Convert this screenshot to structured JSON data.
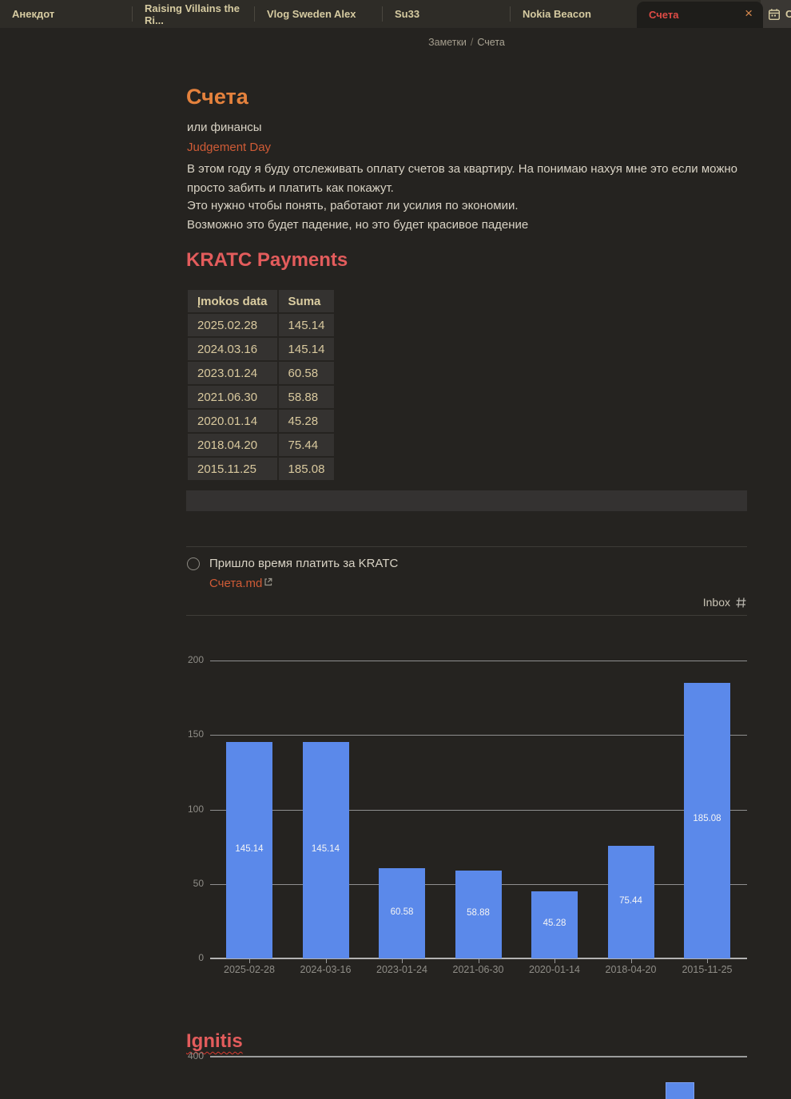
{
  "tabs": {
    "items": [
      {
        "label": "Анекдот",
        "active": false
      },
      {
        "label": "Raising Villains the Ri...",
        "active": false
      },
      {
        "label": "Vlog Sweden Alex",
        "active": false
      },
      {
        "label": "Su33",
        "active": false
      },
      {
        "label": "Nokia Beacon",
        "active": false
      },
      {
        "label": "Счета",
        "active": true
      }
    ],
    "close_glyph": "×",
    "partial_tab_label": "С"
  },
  "breadcrumb": {
    "parent": "Заметки",
    "separator": "/",
    "current": "Счета"
  },
  "note": {
    "title": "Счета",
    "line1": "или финансы",
    "link_label": "Judgement Day",
    "para1": "В этом году я буду отслеживать оплату счетов за квартиру. На понимаю нахуя мне это если можно просто забить и платить как покажут.",
    "para2": "Это нужно чтобы понять, работают ли усилия по экономии.",
    "para3": "Возможно это будет падение, но это будет красивое падение"
  },
  "kratc": {
    "heading": "KRATC Payments",
    "table": {
      "headers": [
        "Įmokos data",
        "Suma"
      ],
      "rows": [
        [
          "2025.02.28",
          "145.14"
        ],
        [
          "2024.03.16",
          "145.14"
        ],
        [
          "2023.01.24",
          "60.58"
        ],
        [
          "2021.06.30",
          "58.88"
        ],
        [
          "2020.01.14",
          "45.28"
        ],
        [
          "2018.04.20",
          "75.44"
        ],
        [
          "2015.11.25",
          "185.08"
        ]
      ]
    }
  },
  "task": {
    "text": "Пришло время платить за KRATC",
    "link_label": "Счета.md",
    "tag_label": "Inbox"
  },
  "ignitis": {
    "heading": "Ignitis"
  },
  "colors": {
    "accent_orange": "#e5823d",
    "link_orange": "#cf5b36",
    "heading_red": "#e35c5c",
    "active_tab_red": "#df4b45",
    "bar_blue": "#5b89ea",
    "tab_text_tan": "#d6cba1"
  },
  "chart_data": [
    {
      "type": "bar",
      "categories": [
        "2025-02-28",
        "2024-03-16",
        "2023-01-24",
        "2021-06-30",
        "2020-01-14",
        "2018-04-20",
        "2015-11-25"
      ],
      "values": [
        145.14,
        145.14,
        60.58,
        58.88,
        45.28,
        75.44,
        185.08
      ],
      "bar_labels": [
        "145.14",
        "145.14",
        "60.58",
        "58.88",
        "45.28",
        "75.44",
        "185.08"
      ],
      "yticks": [
        0,
        50,
        100,
        150,
        200
      ],
      "ylim": [
        0,
        200
      ],
      "grid": true,
      "legend": false,
      "bar_color": "#5b89ea"
    },
    {
      "type": "bar",
      "title": "Ignitis",
      "yticks": [
        400
      ],
      "partially_visible": true,
      "visible_bar_count": 1
    }
  ]
}
